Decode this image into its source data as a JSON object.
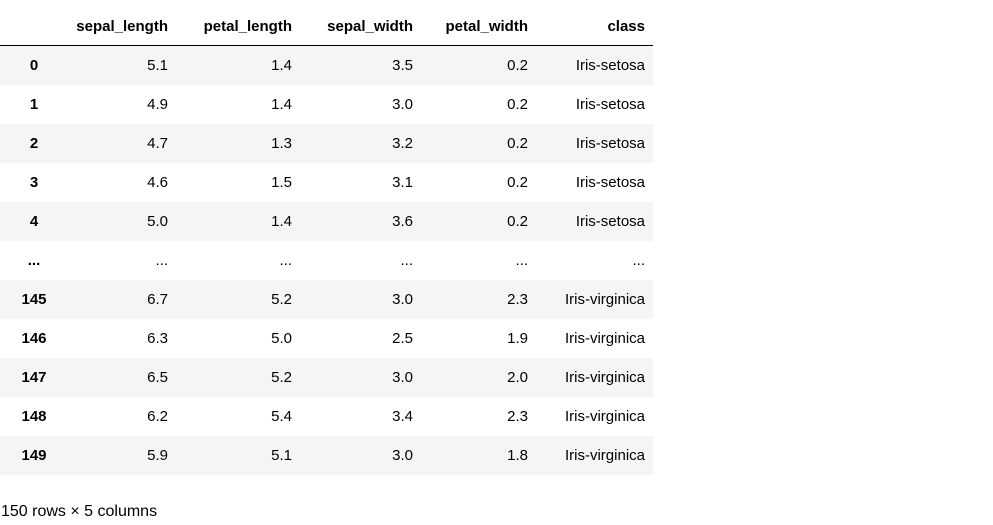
{
  "table": {
    "index_header": "",
    "columns": [
      "sepal_length",
      "petal_length",
      "sepal_width",
      "petal_width",
      "class"
    ],
    "rows": [
      {
        "index": "0",
        "values": [
          "5.1",
          "1.4",
          "3.5",
          "0.2",
          "Iris-setosa"
        ]
      },
      {
        "index": "1",
        "values": [
          "4.9",
          "1.4",
          "3.0",
          "0.2",
          "Iris-setosa"
        ]
      },
      {
        "index": "2",
        "values": [
          "4.7",
          "1.3",
          "3.2",
          "0.2",
          "Iris-setosa"
        ]
      },
      {
        "index": "3",
        "values": [
          "4.6",
          "1.5",
          "3.1",
          "0.2",
          "Iris-setosa"
        ]
      },
      {
        "index": "4",
        "values": [
          "5.0",
          "1.4",
          "3.6",
          "0.2",
          "Iris-setosa"
        ]
      },
      {
        "index": "...",
        "values": [
          "...",
          "...",
          "...",
          "...",
          "..."
        ]
      },
      {
        "index": "145",
        "values": [
          "6.7",
          "5.2",
          "3.0",
          "2.3",
          "Iris-virginica"
        ]
      },
      {
        "index": "146",
        "values": [
          "6.3",
          "5.0",
          "2.5",
          "1.9",
          "Iris-virginica"
        ]
      },
      {
        "index": "147",
        "values": [
          "6.5",
          "5.2",
          "3.0",
          "2.0",
          "Iris-virginica"
        ]
      },
      {
        "index": "148",
        "values": [
          "6.2",
          "5.4",
          "3.4",
          "2.3",
          "Iris-virginica"
        ]
      },
      {
        "index": "149",
        "values": [
          "5.9",
          "5.1",
          "3.0",
          "1.8",
          "Iris-virginica"
        ]
      }
    ],
    "summary": "150 rows × 5 columns"
  },
  "colors": {
    "row_stripe": "#f5f5f5",
    "header_rule": "#000000",
    "text": "#000000",
    "background": "#ffffff"
  }
}
